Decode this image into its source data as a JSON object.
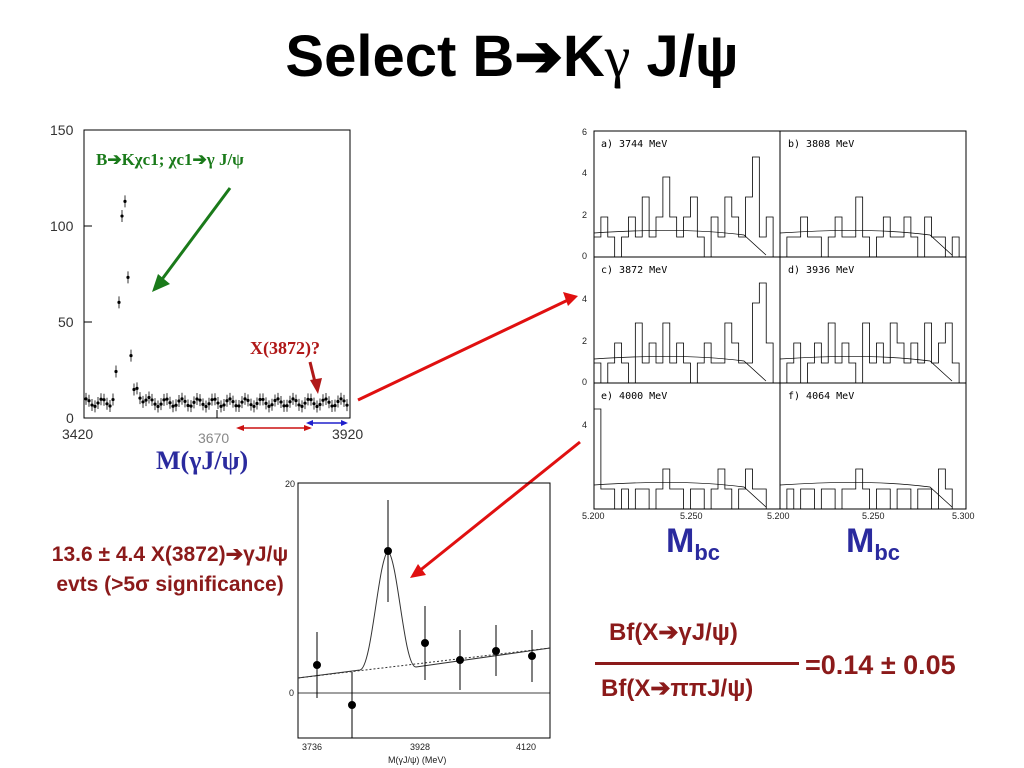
{
  "title": {
    "prefix": "Select B",
    "arrow": "➔",
    "k": "K",
    "gamma": "γ",
    "jpsi": " J/ψ"
  },
  "left_plot": {
    "y_ticks": [
      "150",
      "100",
      "50",
      "0"
    ],
    "x_ticks": [
      "3420",
      "3670",
      "3920"
    ],
    "xlabel": "M(γJ/ψ)",
    "annotation_chi": "B➔Kχc1; χc1➔γ J/ψ",
    "annotation_x": "X(3872)?",
    "colors": {
      "green": "#1a7a1a",
      "red": "#cc1111",
      "blue": "#2020cc",
      "dark_red": "#b01818"
    }
  },
  "grid_plot": {
    "panels": [
      "a) 3744 MeV",
      "b) 3808 MeV",
      "c) 3872 MeV",
      "d) 3936 MeV",
      "e) 4000 MeV",
      "f) 4064 MeV"
    ],
    "y_ticks": [
      "6",
      "4",
      "2",
      "0"
    ],
    "x_ticks": [
      "5.200",
      "5.250",
      "5.200",
      "5.250",
      "5.300"
    ],
    "xlabel_left": "M",
    "xlabel_left_sub": "bc",
    "xlabel_right": "M",
    "xlabel_right_sub": "bc"
  },
  "bottom_plot": {
    "y_ticks": [
      "20",
      "0"
    ],
    "x_ticks": [
      "3736",
      "3928",
      "4120"
    ],
    "xlabel": "M(γJ/ψ) (MeV)"
  },
  "significance": {
    "line1": "13.6 ± 4.4  X(3872)➔γJ/ψ",
    "line2": "evts (>5σ significance)"
  },
  "ratio": {
    "numerator": "Bf(X➔γJ/ψ)",
    "denominator": "Bf(X➔ππJ/ψ)",
    "value": "=0.14 ± 0.05"
  }
}
